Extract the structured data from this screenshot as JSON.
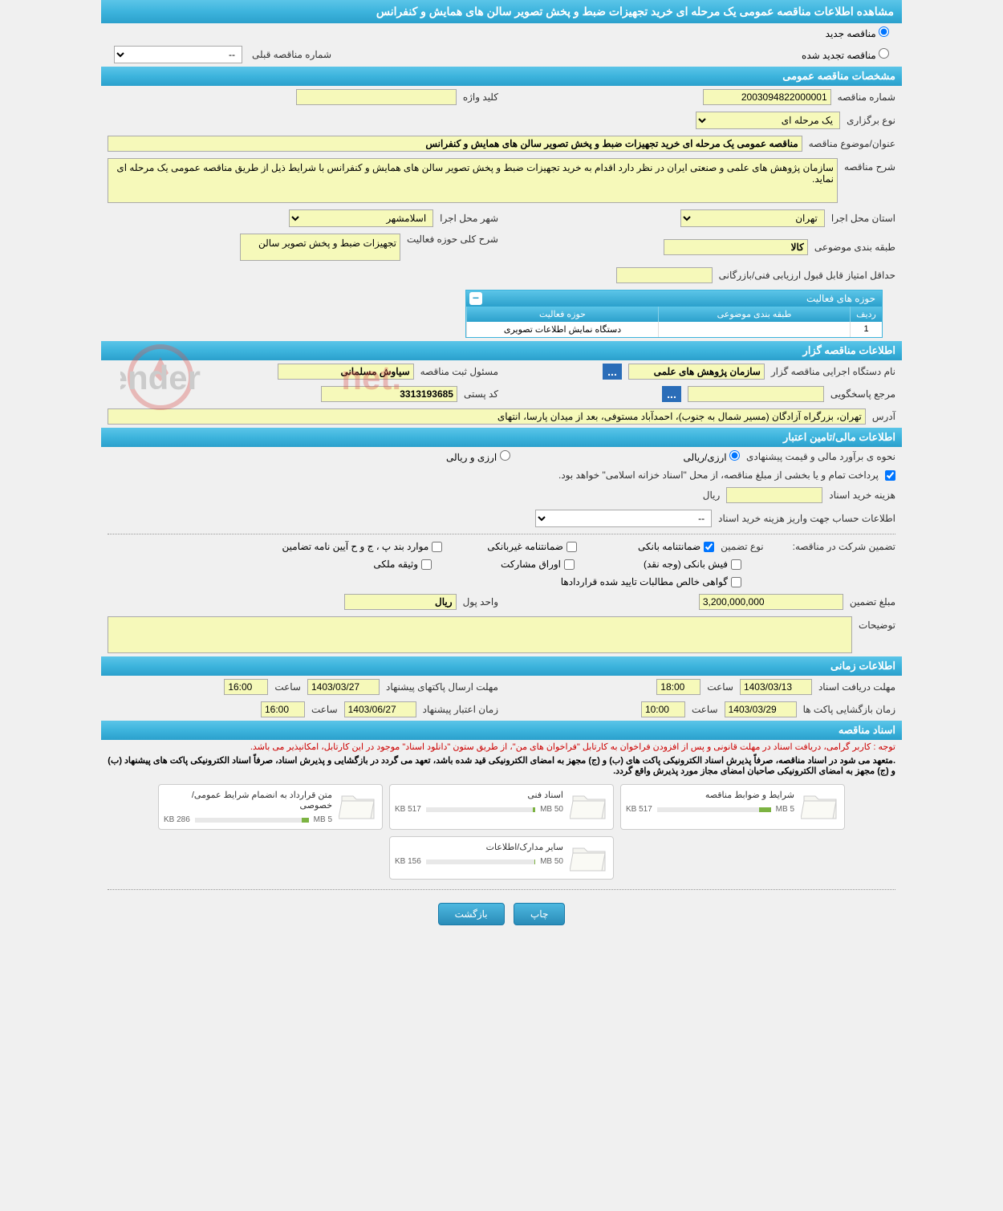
{
  "page_title": "مشاهده اطلاعات مناقصه عمومی یک مرحله ای خرید تجهیزات ضبط و پخش تصویر سالن های همایش و کنفرانس",
  "colors": {
    "header_bg_top": "#5bc5e8",
    "header_bg_bottom": "#2ba0cc",
    "yellow_field": "#f6f9ba",
    "page_bg": "#f0f0f0",
    "red_text": "#cc0000",
    "button_bg_top": "#4db8e0",
    "button_bg_bottom": "#2a8cb8",
    "bar_fill": "#7cb342"
  },
  "radio_options": {
    "new_tender": "مناقصه جدید",
    "renewed_tender": "مناقصه تجدید شده"
  },
  "prev_tender_label": "شماره مناقصه قبلی",
  "prev_tender_value": "--",
  "sections": {
    "general": "مشخصات مناقصه عمومی",
    "organizer": "اطلاعات مناقصه گزار",
    "financial": "اطلاعات مالی/تامین اعتبار",
    "timing": "اطلاعات زمانی",
    "documents": "اسناد مناقصه"
  },
  "general": {
    "tender_no_label": "شماره مناقصه",
    "tender_no": "2003094822000001",
    "keyword_label": "کلید واژه",
    "keyword": "",
    "type_label": "نوع برگزاری",
    "type": "یک مرحله ای",
    "subject_label": "عنوان/موضوع مناقصه",
    "subject": "مناقصه عمومی یک مرحله ای خرید تجهیزات ضبط و پخش تصویر سالن های همایش و کنفرانس",
    "desc_label": "شرح مناقصه",
    "desc": "سازمان پژوهش های علمی و صنعتی ایران در نظر دارد اقدام به خرید تجهیزات ضبط و پخش تصویر سالن های همایش و کنفرانس با شرایط ذیل از طریق مناقصه عمومی یک مرحله ای نماید.",
    "province_label": "استان محل اجرا",
    "province": "تهران",
    "city_label": "شهر محل اجرا",
    "city": "اسلامشهر",
    "category_label": "طبقه بندی موضوعی",
    "category": "کالا",
    "activity_scope_label": "شرح کلی حوزه فعالیت",
    "activity_scope": "تجهیزات ضبط و پخش تصویر سالن",
    "min_score_label": "حداقل امتیاز قابل قبول ارزیابی فنی/بازرگانی",
    "min_score": ""
  },
  "activity_table": {
    "title": "حوزه های فعالیت",
    "col_row": "ردیف",
    "col_category": "طبقه بندی موضوعی",
    "col_activity": "حوزه فعالیت",
    "rows": [
      {
        "n": "1",
        "category": "",
        "activity": "دستگاه نمایش اطلاعات تصویری"
      }
    ]
  },
  "organizer": {
    "org_label": "نام دستگاه اجرایی مناقصه گزار",
    "org": "سازمان پژوهش های علمی",
    "responsible_label": "مسئول ثبت مناقصه",
    "responsible": "سیاوش مسلمانی",
    "contact_label": "مرجع پاسخگویی",
    "contact": "",
    "postal_label": "کد پستی",
    "postal": "3313193685",
    "address_label": "آدرس",
    "address": "تهران، بزرگراه آزادگان (مسیر شمال به جنوب)، احمدآباد مستوفی، بعد از میدان پارسا، انتهای"
  },
  "financial": {
    "estimate_label": "نحوه ی برآورد مالی و قیمت پیشنهادی",
    "opt_rial": "ارزی/ریالی",
    "opt_currency": "ارزی و ریالی",
    "source_note": "پرداخت تمام و یا بخشی از مبلغ مناقصه، از محل \"اسناد خزانه اسلامی\" خواهد بود.",
    "doc_cost_label": "هزینه خرید اسناد",
    "doc_cost": "",
    "doc_cost_unit": "ریال",
    "account_label": "اطلاعات حساب جهت واریز هزینه خرید اسناد",
    "account": "--",
    "guarantee_participate_label": "تضمین شرکت در مناقصه:",
    "guarantee_type_label": "نوع تضمین",
    "cb_bank_guarantee": "ضمانتنامه بانکی",
    "cb_nonbank_guarantee": "ضمانتنامه غیربانکی",
    "cb_bylaw_items": "موارد بند پ ، ج و ح آیین نامه تضامین",
    "cb_bank_receipt": "فیش بانکی (وجه نقد)",
    "cb_participation_papers": "اوراق مشارکت",
    "cb_property_deposit": "وثیقه ملکی",
    "cb_net_receivables": "گواهی خالص مطالبات تایید شده قراردادها",
    "guarantee_amount_label": "مبلغ تضمین",
    "guarantee_amount": "3,200,000,000",
    "currency_unit_label": "واحد پول",
    "currency_unit": "ریال",
    "notes_label": "توضیحات",
    "notes": ""
  },
  "timing": {
    "receive_deadline_label": "مهلت دریافت اسناد",
    "receive_deadline_date": "1403/03/13",
    "hour_label": "ساعت",
    "receive_deadline_time": "18:00",
    "send_deadline_label": "مهلت ارسال پاکتهای پیشنهاد",
    "send_deadline_date": "1403/03/27",
    "send_deadline_time": "16:00",
    "opening_label": "زمان بازگشایی پاکت ها",
    "opening_date": "1403/03/29",
    "opening_time": "10:00",
    "validity_label": "زمان اعتبار پیشنهاد",
    "validity_date": "1403/06/27",
    "validity_time": "16:00"
  },
  "docs_section": {
    "note1": "توجه : کاربر گرامی، دریافت اسناد در مهلت قانونی و پس از افزودن فراخوان به کارتابل \"فراخوان های من\"، از طریق ستون \"دانلود اسناد\" موجود در این کارتابل، امکانپذیر می باشد.",
    "note2": ".متعهد می شود در اسناد مناقصه، صرفاً پذیرش اسناد الکترونیکی پاکت‌ های (ب) و (ج) مجهز به امضای الکترونیکی قید شده باشد، تعهد می گردد در بازگشایی و پذیرش اسناد، صرفاً اسناد الکترونیکی پاکت های پیشنهاد (ب) و (ج) مجهز به امضای الکترونیکی صاحبان امضای مجاز مورد پذیرش واقع گردد.",
    "cards": [
      {
        "title": "شرایط و ضوابط مناقصه",
        "used": "517 KB",
        "total": "5 MB",
        "fill_pct": 10
      },
      {
        "title": "اسناد فنی",
        "used": "517 KB",
        "total": "50 MB",
        "fill_pct": 2
      },
      {
        "title": "متن قرارداد به انضمام شرایط عمومی/خصوصی",
        "used": "286 KB",
        "total": "5 MB",
        "fill_pct": 6
      },
      {
        "title": "سایر مدارک/اطلاعات",
        "used": "156 KB",
        "total": "50 MB",
        "fill_pct": 1
      }
    ]
  },
  "buttons": {
    "back": "بازگشت",
    "print": "چاپ"
  },
  "watermark_text": "AriaTender.net"
}
